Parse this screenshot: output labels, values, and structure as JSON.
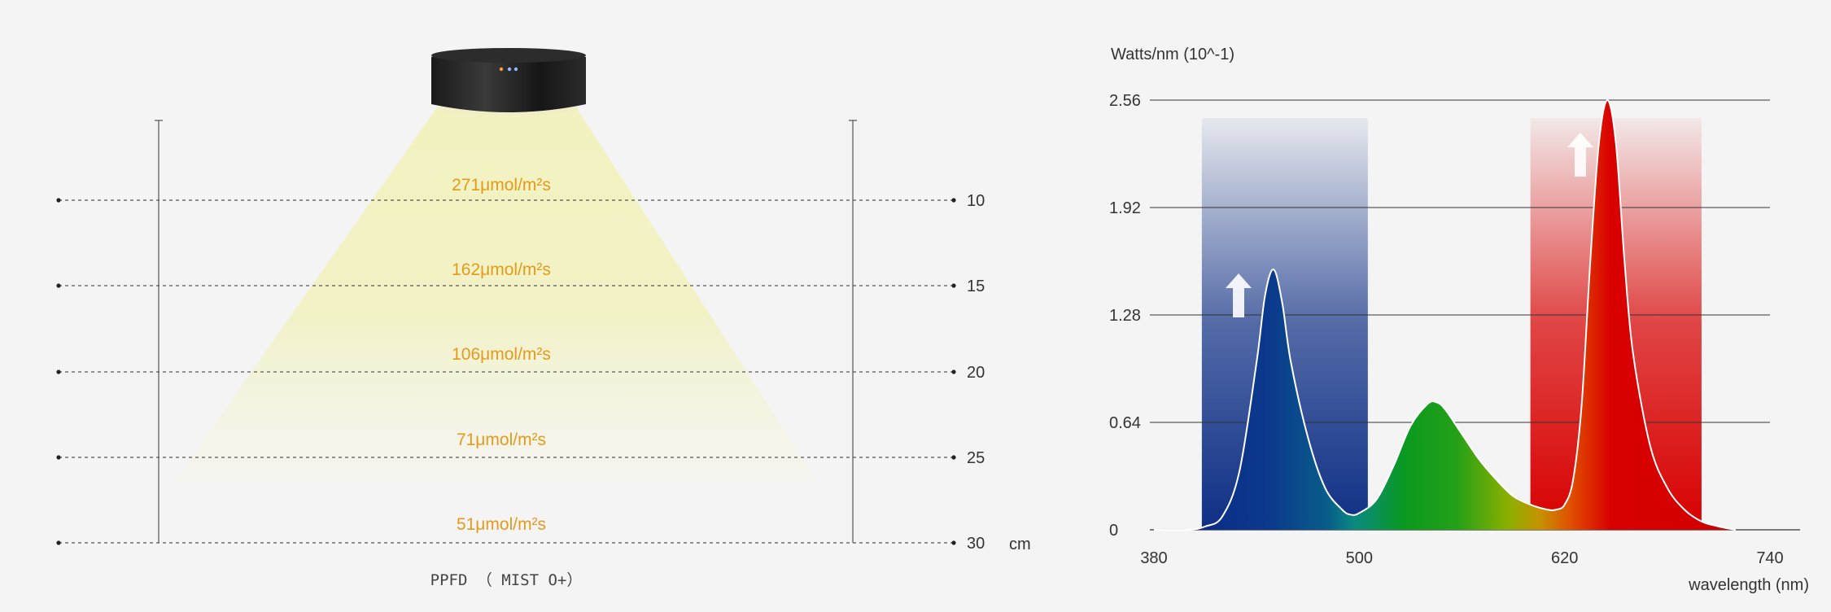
{
  "ppfd_chart": {
    "type": "table",
    "title": "PPFD （ MIST O+）",
    "unit_label": "cm",
    "rows": [
      {
        "distance": "10",
        "value": "271μmol/m²s"
      },
      {
        "distance": "15",
        "value": "162μmol/m²s"
      },
      {
        "distance": "20",
        "value": "106μmol/m²s"
      },
      {
        "distance": "25",
        "value": "71μmol/m²s"
      },
      {
        "distance": "30",
        "value": "51μmol/m²s"
      }
    ]
  },
  "chart_data": {
    "type": "area",
    "ylabel": "Watts/nm (10^-1)",
    "xlabel": "wavelength (nm)",
    "xlim": [
      380,
      740
    ],
    "ylim": [
      0,
      2.56
    ],
    "x_ticks": [
      "380",
      "500",
      "620",
      "740"
    ],
    "y_ticks": [
      "0",
      "0.64",
      "1.28",
      "1.92",
      "2.56"
    ],
    "grid": true,
    "series": [
      {
        "x": [
          380,
          400,
          410,
          420,
          430,
          440,
          445,
          450,
          455,
          460,
          470,
          480,
          490,
          495,
          500,
          510,
          520,
          530,
          540,
          545,
          550,
          560,
          570,
          580,
          590,
          600,
          610,
          615,
          620,
          625,
          630,
          635,
          640,
          645,
          650,
          655,
          660,
          670,
          680,
          690,
          700,
          710,
          720
        ],
        "values": [
          0,
          0,
          0.02,
          0.08,
          0.35,
          1.0,
          1.4,
          1.55,
          1.35,
          1.0,
          0.55,
          0.25,
          0.12,
          0.09,
          0.1,
          0.18,
          0.38,
          0.62,
          0.75,
          0.76,
          0.72,
          0.57,
          0.42,
          0.3,
          0.2,
          0.15,
          0.12,
          0.12,
          0.15,
          0.3,
          0.75,
          1.6,
          2.3,
          2.56,
          2.3,
          1.6,
          1.05,
          0.5,
          0.25,
          0.12,
          0.05,
          0.02,
          0
        ]
      }
    ],
    "highlight_bands": [
      {
        "from": 408,
        "to": 505,
        "color": "#0e2f85"
      },
      {
        "from": 600,
        "to": 700,
        "color": "#d80000"
      }
    ]
  },
  "colors": {
    "ppfd_text": "#e49a1b",
    "blue_band": "#0e2f85",
    "red_band": "#d80000",
    "green_peak": "#0a9a1e",
    "beam": "#f2f2c0"
  },
  "icons": [
    "led-fixture-icon",
    "up-arrow-icon"
  ]
}
